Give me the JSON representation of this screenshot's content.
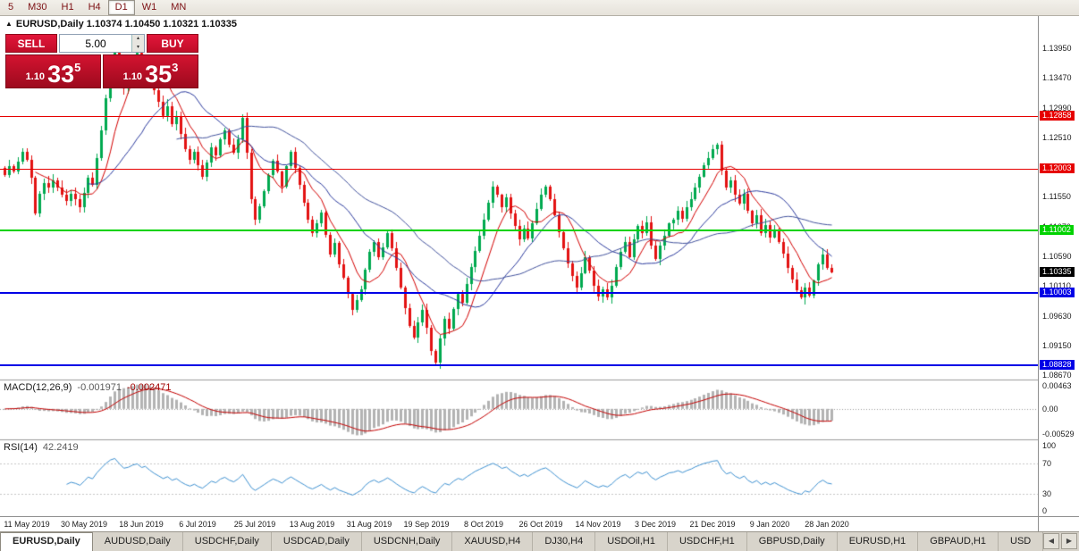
{
  "toolbar": {
    "timeframes": [
      "5",
      "M30",
      "H1",
      "H4",
      "D1",
      "W1",
      "MN"
    ],
    "active": "D1"
  },
  "icons": {
    "collapse": "▲",
    "spin_up": "▴",
    "spin_down": "▾",
    "tab_left": "◀",
    "tab_right": "▶"
  },
  "chart_header": {
    "symbol": "EURUSD,Daily",
    "ohlc": "1.10374 1.10450 1.10321 1.10335"
  },
  "trade_panel": {
    "sell_label": "SELL",
    "buy_label": "BUY",
    "volume": "5.00",
    "bid": {
      "base": "1.10",
      "big": "33",
      "sup": "5"
    },
    "ask": {
      "base": "1.10",
      "big": "35",
      "sup": "3"
    }
  },
  "indicators": {
    "macd": {
      "label": "MACD(12,26,9)",
      "value1": "-0.001971",
      "value2": "-0.002471",
      "axis": [
        "0.00463",
        "0.00",
        "-0.00529"
      ]
    },
    "rsi": {
      "label": "RSI(14)",
      "value": "42.2419",
      "axis": [
        "100",
        "70",
        "30",
        "0"
      ]
    }
  },
  "price_axis": {
    "ticks": [
      "1.13950",
      "1.13470",
      "1.12990",
      "1.12510",
      "1.12030",
      "1.11550",
      "1.11070",
      "1.10590",
      "1.10110",
      "1.09630",
      "1.09150",
      "1.08670"
    ]
  },
  "hlines": [
    {
      "price": 1.12858,
      "label": "1.12858",
      "color": "#e60000",
      "thickness": 1
    },
    {
      "price": 1.12003,
      "label": "1.12003",
      "color": "#e60000",
      "thickness": 1
    },
    {
      "price": 1.11002,
      "label": "1.11002",
      "color": "#00d200",
      "thickness": 2
    },
    {
      "price": 1.10003,
      "label": "1.10003",
      "color": "#0000e6",
      "thickness": 2
    },
    {
      "price": 1.08828,
      "label": "1.08828",
      "color": "#0000e6",
      "thickness": 2
    }
  ],
  "current_price_tag": {
    "label": "1.10335",
    "price": 1.10335,
    "bg": "#000000"
  },
  "time_axis": {
    "labels": [
      {
        "text": "11 May 2019",
        "bar": 5
      },
      {
        "text": "30 May 2019",
        "bar": 18
      },
      {
        "text": "18 Jun 2019",
        "bar": 31
      },
      {
        "text": "6 Jul 2019",
        "bar": 44
      },
      {
        "text": "25 Jul 2019",
        "bar": 57
      },
      {
        "text": "13 Aug 2019",
        "bar": 70
      },
      {
        "text": "31 Aug 2019",
        "bar": 83
      },
      {
        "text": "19 Sep 2019",
        "bar": 96
      },
      {
        "text": "8 Oct 2019",
        "bar": 109
      },
      {
        "text": "26 Oct 2019",
        "bar": 122
      },
      {
        "text": "14 Nov 2019",
        "bar": 135
      },
      {
        "text": "3 Dec 2019",
        "bar": 148
      },
      {
        "text": "21 Dec 2019",
        "bar": 161
      },
      {
        "text": "9 Jan 2020",
        "bar": 174
      },
      {
        "text": "28 Jan 2020",
        "bar": 187
      }
    ]
  },
  "tabs": {
    "items": [
      "EURUSD,Daily",
      "AUDUSD,Daily",
      "USDCHF,Daily",
      "USDCAD,Daily",
      "USDCNH,Daily",
      "XAUUSD,H4",
      "DJ30,H4",
      "USDOil,H1",
      "USDCHF,H1",
      "GBPUSD,Daily",
      "EURUSD,H1",
      "GBPAUD,H1",
      "USD"
    ],
    "active_index": 0
  },
  "chart_data": {
    "type": "candlestick",
    "symbol": "EURUSD",
    "timeframe": "Daily",
    "ohlc_current": {
      "open": 1.10374,
      "high": 1.1045,
      "low": 1.10321,
      "close": 1.10335
    },
    "ylim": [
      1.086,
      1.1447
    ],
    "y_tick_step": 0.0048,
    "colors": {
      "up": "#00a94f",
      "down": "#e31212",
      "macd_hist": "#b3b3b3",
      "macd_signal": "#c40000",
      "rsi_line": "#3f92d2"
    },
    "overlays": [
      {
        "name": "ma-fast",
        "type": "sma",
        "period": 8,
        "color": "#d40000"
      },
      {
        "name": "ma-mid",
        "type": "sma",
        "period": 20,
        "color": "#2b3a9e"
      },
      {
        "name": "ma-slow",
        "type": "sma",
        "period": 40,
        "color": "#44549e"
      }
    ],
    "macd": {
      "fast": 12,
      "slow": 26,
      "signal": 9
    },
    "rsi": {
      "period": 14,
      "levels": [
        70,
        30
      ]
    },
    "closes": [
      1.119,
      1.1205,
      1.1196,
      1.1212,
      1.1228,
      1.1215,
      1.1186,
      1.1128,
      1.116,
      1.1178,
      1.117,
      1.1182,
      1.117,
      1.1158,
      1.1148,
      1.116,
      1.1152,
      1.1138,
      1.1162,
      1.1186,
      1.1175,
      1.1218,
      1.1262,
      1.1315,
      1.1368,
      1.1395,
      1.1362,
      1.133,
      1.1342,
      1.1372,
      1.1388,
      1.1364,
      1.1378,
      1.1352,
      1.1328,
      1.1308,
      1.1286,
      1.1302,
      1.1272,
      1.1285,
      1.1256,
      1.1232,
      1.1215,
      1.1228,
      1.1206,
      1.1188,
      1.121,
      1.1235,
      1.1222,
      1.1248,
      1.1262,
      1.124,
      1.1226,
      1.1248,
      1.1282,
      1.1226,
      1.1152,
      1.1118,
      1.114,
      1.1164,
      1.119,
      1.1214,
      1.1196,
      1.1172,
      1.1204,
      1.1228,
      1.1202,
      1.1174,
      1.1146,
      1.1118,
      1.1096,
      1.1112,
      1.113,
      1.1094,
      1.1062,
      1.108,
      1.1046,
      1.1024,
      1.0998,
      1.0972,
      1.0988,
      1.1006,
      1.1038,
      1.1066,
      1.1082,
      1.1058,
      1.1074,
      1.1096,
      1.1072,
      1.104,
      1.1008,
      1.0976,
      1.0946,
      1.0928,
      1.0952,
      1.0972,
      1.0944,
      1.0906,
      1.0888,
      1.0926,
      1.0958,
      1.0942,
      1.0974,
      1.0998,
      1.0984,
      1.1014,
      1.1042,
      1.1068,
      1.1092,
      1.1118,
      1.1146,
      1.1172,
      1.1158,
      1.1138,
      1.1154,
      1.1128,
      1.1108,
      1.1086,
      1.1104,
      1.1088,
      1.1112,
      1.1136,
      1.1158,
      1.1172,
      1.1152,
      1.1126,
      1.1098,
      1.1072,
      1.1048,
      1.1028,
      1.1008,
      1.1032,
      1.1058,
      1.1036,
      1.1012,
      1.0994,
      1.1006,
      1.0992,
      1.1012,
      1.1042,
      1.1066,
      1.1082,
      1.1058,
      1.1086,
      1.1108,
      1.1096,
      1.1114,
      1.1076,
      1.1054,
      1.1076,
      1.1092,
      1.1112,
      1.1118,
      1.1132,
      1.112,
      1.1138,
      1.1152,
      1.117,
      1.1188,
      1.1206,
      1.1218,
      1.1232,
      1.1239,
      1.1198,
      1.117,
      1.1182,
      1.1158,
      1.1144,
      1.116,
      1.1132,
      1.1112,
      1.1126,
      1.1096,
      1.111,
      1.109,
      1.1102,
      1.1082,
      1.1064,
      1.104,
      1.1022,
      1.1004,
      1.0992,
      1.1008,
      1.0996,
      1.102,
      1.1046,
      1.1062,
      1.104,
      1.10335
    ]
  }
}
